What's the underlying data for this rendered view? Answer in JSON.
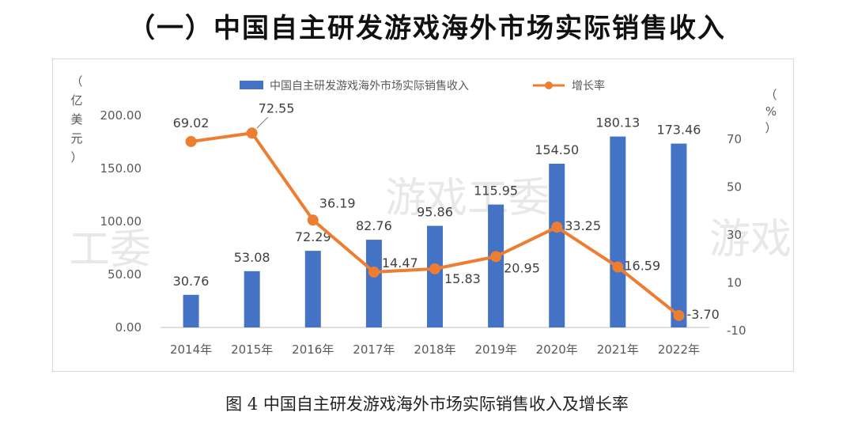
{
  "heading": "（一）中国自主研发游戏海外市场实际销售收入",
  "caption": "图 4  中国自主研发游戏海外市场实际销售收入及增长率",
  "watermark": [
    "游戏工委",
    "工委",
    "游戏"
  ],
  "chart_data": {
    "type": "bar+line",
    "categories": [
      "2014年",
      "2015年",
      "2016年",
      "2017年",
      "2018年",
      "2019年",
      "2020年",
      "2021年",
      "2022年"
    ],
    "series": [
      {
        "name": "中国自主研发游戏海外市场实际销售收入",
        "kind": "bar",
        "axis": "left",
        "values": [
          30.76,
          53.08,
          72.29,
          82.76,
          95.86,
          115.95,
          154.5,
          180.13,
          173.46
        ],
        "labels": [
          "30.76",
          "53.08",
          "72.29",
          "82.76",
          "95.86",
          "115.95",
          "154.50",
          "180.13",
          "173.46"
        ],
        "color": "#4472c4"
      },
      {
        "name": "增长率",
        "kind": "line",
        "axis": "right",
        "values": [
          69.02,
          72.55,
          36.19,
          14.47,
          15.83,
          20.95,
          33.25,
          16.59,
          -3.7
        ],
        "labels": [
          "69.02",
          "72.55",
          "36.19",
          "14.47",
          "15.83",
          "20.95",
          "33.25",
          "16.59",
          "-3.70"
        ],
        "color": "#ed7d31"
      }
    ],
    "left_axis": {
      "label": [
        "（",
        "亿",
        "美",
        "元",
        "）"
      ],
      "ylim": [
        0,
        200
      ],
      "ticks": [
        0,
        50,
        100,
        150,
        200
      ],
      "tick_labels": [
        "0.00",
        "50.00",
        "100.00",
        "150.00",
        "200.00"
      ]
    },
    "right_axis": {
      "label": [
        "（",
        "%",
        "）"
      ],
      "ylim": [
        -10,
        70
      ],
      "ticks": [
        -10,
        10,
        30,
        50,
        70
      ],
      "tick_labels": [
        "-10",
        "10",
        "30",
        "50",
        "70"
      ]
    },
    "legend": {
      "position": "top-center",
      "entries": [
        "中国自主研发游戏海外市场实际销售收入",
        "增长率"
      ]
    }
  }
}
